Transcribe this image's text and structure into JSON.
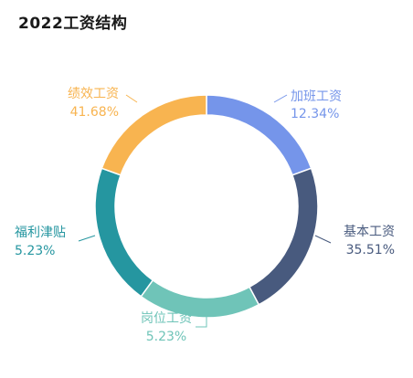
{
  "card": {
    "title": "2022工资结构"
  },
  "chart_data": {
    "type": "pie",
    "variant": "donut",
    "title": "2022工资结构",
    "series": [
      {
        "name": "加班工资",
        "value": 12.34,
        "label": "12.34%",
        "color": "#7595ea"
      },
      {
        "name": "基本工资",
        "value": 35.51,
        "label": "35.51%",
        "color": "#485a7e"
      },
      {
        "name": "岗位工资",
        "value": 5.23,
        "label": "5.23%",
        "color": "#6fc4b8"
      },
      {
        "name": "福利津贴",
        "value": 5.23,
        "label": "5.23%",
        "color": "#2596a0"
      },
      {
        "name": "绩效工资",
        "value": 41.68,
        "label": "41.68%",
        "color": "#f8b450"
      }
    ]
  }
}
